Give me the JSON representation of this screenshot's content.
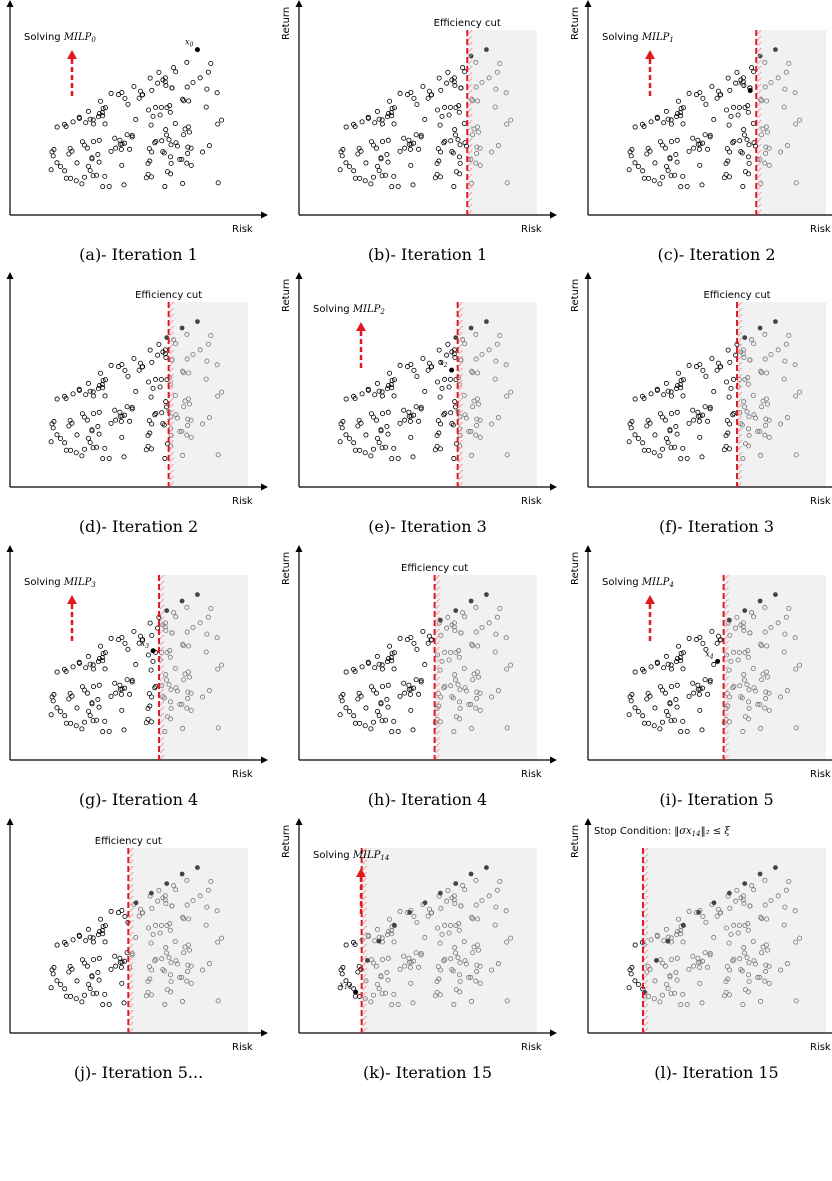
{
  "axes": {
    "x_label": "Risk",
    "y_label": "Return"
  },
  "panels": [
    {
      "id": "a",
      "caption": "(a)- Iteration 1",
      "annotation": {
        "prefix": "Solving ",
        "math": "MILP",
        "sub": "0",
        "suffix": ""
      },
      "cut": null,
      "shade": false,
      "region": "none",
      "point_label": {
        "text": "x",
        "sub": "0"
      }
    },
    {
      "id": "b",
      "caption": "(b)- Iteration 1",
      "annotation": {
        "prefix": "Efficiency cut",
        "math": "",
        "sub": "",
        "suffix": ""
      },
      "cut": 0.72,
      "shade": true,
      "region": "cut",
      "point_label": null
    },
    {
      "id": "c",
      "caption": "(c)- Iteration 2",
      "annotation": {
        "prefix": "Solving ",
        "math": "MILP",
        "sub": "1",
        "suffix": ""
      },
      "cut": 0.72,
      "shade": true,
      "region": "solve",
      "point_label": {
        "text": "x",
        "sub": "1"
      }
    },
    {
      "id": "d",
      "caption": "(d)- Iteration 2",
      "annotation": {
        "prefix": "Efficiency cut",
        "math": "",
        "sub": "",
        "suffix": ""
      },
      "cut": 0.67,
      "shade": true,
      "region": "cut",
      "point_label": null
    },
    {
      "id": "e",
      "caption": "(e)- Iteration 3",
      "annotation": {
        "prefix": "Solving ",
        "math": "MILP",
        "sub": "2",
        "suffix": ""
      },
      "cut": 0.67,
      "shade": true,
      "region": "solve",
      "point_label": {
        "text": "x",
        "sub": "2"
      }
    },
    {
      "id": "f",
      "caption": "(f)- Iteration 3",
      "annotation": {
        "prefix": "Efficiency cut",
        "math": "",
        "sub": "",
        "suffix": ""
      },
      "cut": 0.62,
      "shade": true,
      "region": "cut",
      "point_label": null
    },
    {
      "id": "g",
      "caption": "(g)- Iteration 4",
      "annotation": {
        "prefix": "Solving ",
        "math": "MILP",
        "sub": "3",
        "suffix": ""
      },
      "cut": 0.62,
      "shade": true,
      "region": "solve",
      "point_label": {
        "text": "x",
        "sub": "3"
      }
    },
    {
      "id": "h",
      "caption": "(h)- Iteration 4",
      "annotation": {
        "prefix": "Efficiency cut",
        "math": "",
        "sub": "",
        "suffix": ""
      },
      "cut": 0.55,
      "shade": true,
      "region": "cut",
      "point_label": null
    },
    {
      "id": "i",
      "caption": "(i)- Iteration 5",
      "annotation": {
        "prefix": "Solving ",
        "math": "MILP",
        "sub": "4",
        "suffix": ""
      },
      "cut": 0.55,
      "shade": true,
      "region": "solve",
      "point_label": {
        "text": "x",
        "sub": "4"
      }
    },
    {
      "id": "j",
      "caption": "(j)- Iteration 5...",
      "annotation": {
        "prefix": "Efficiency cut",
        "math": "",
        "sub": "",
        "suffix": ""
      },
      "cut": 0.46,
      "shade": true,
      "region": "cut",
      "point_label": null
    },
    {
      "id": "k",
      "caption": "(k)- Iteration 15",
      "annotation": {
        "prefix": "Solving ",
        "math": "MILP",
        "sub": "14",
        "suffix": ""
      },
      "cut": 0.17,
      "shade": true,
      "region": "solve",
      "point_label": {
        "text": "x",
        "sub": "14"
      }
    },
    {
      "id": "l",
      "caption": "(l)- Iteration 15",
      "annotation": {
        "prefix": "Stop Condition: ",
        "math": "‖σx",
        "sub": "14",
        "suffix": "‖₂ ≤ ξ"
      },
      "cut": 0.13,
      "shade": true,
      "region": "stop",
      "point_label": null
    }
  ],
  "colors": {
    "cut": "#e0191e",
    "shade": "#f1f1f1",
    "point": "#000000",
    "faded_point": "#777777"
  }
}
